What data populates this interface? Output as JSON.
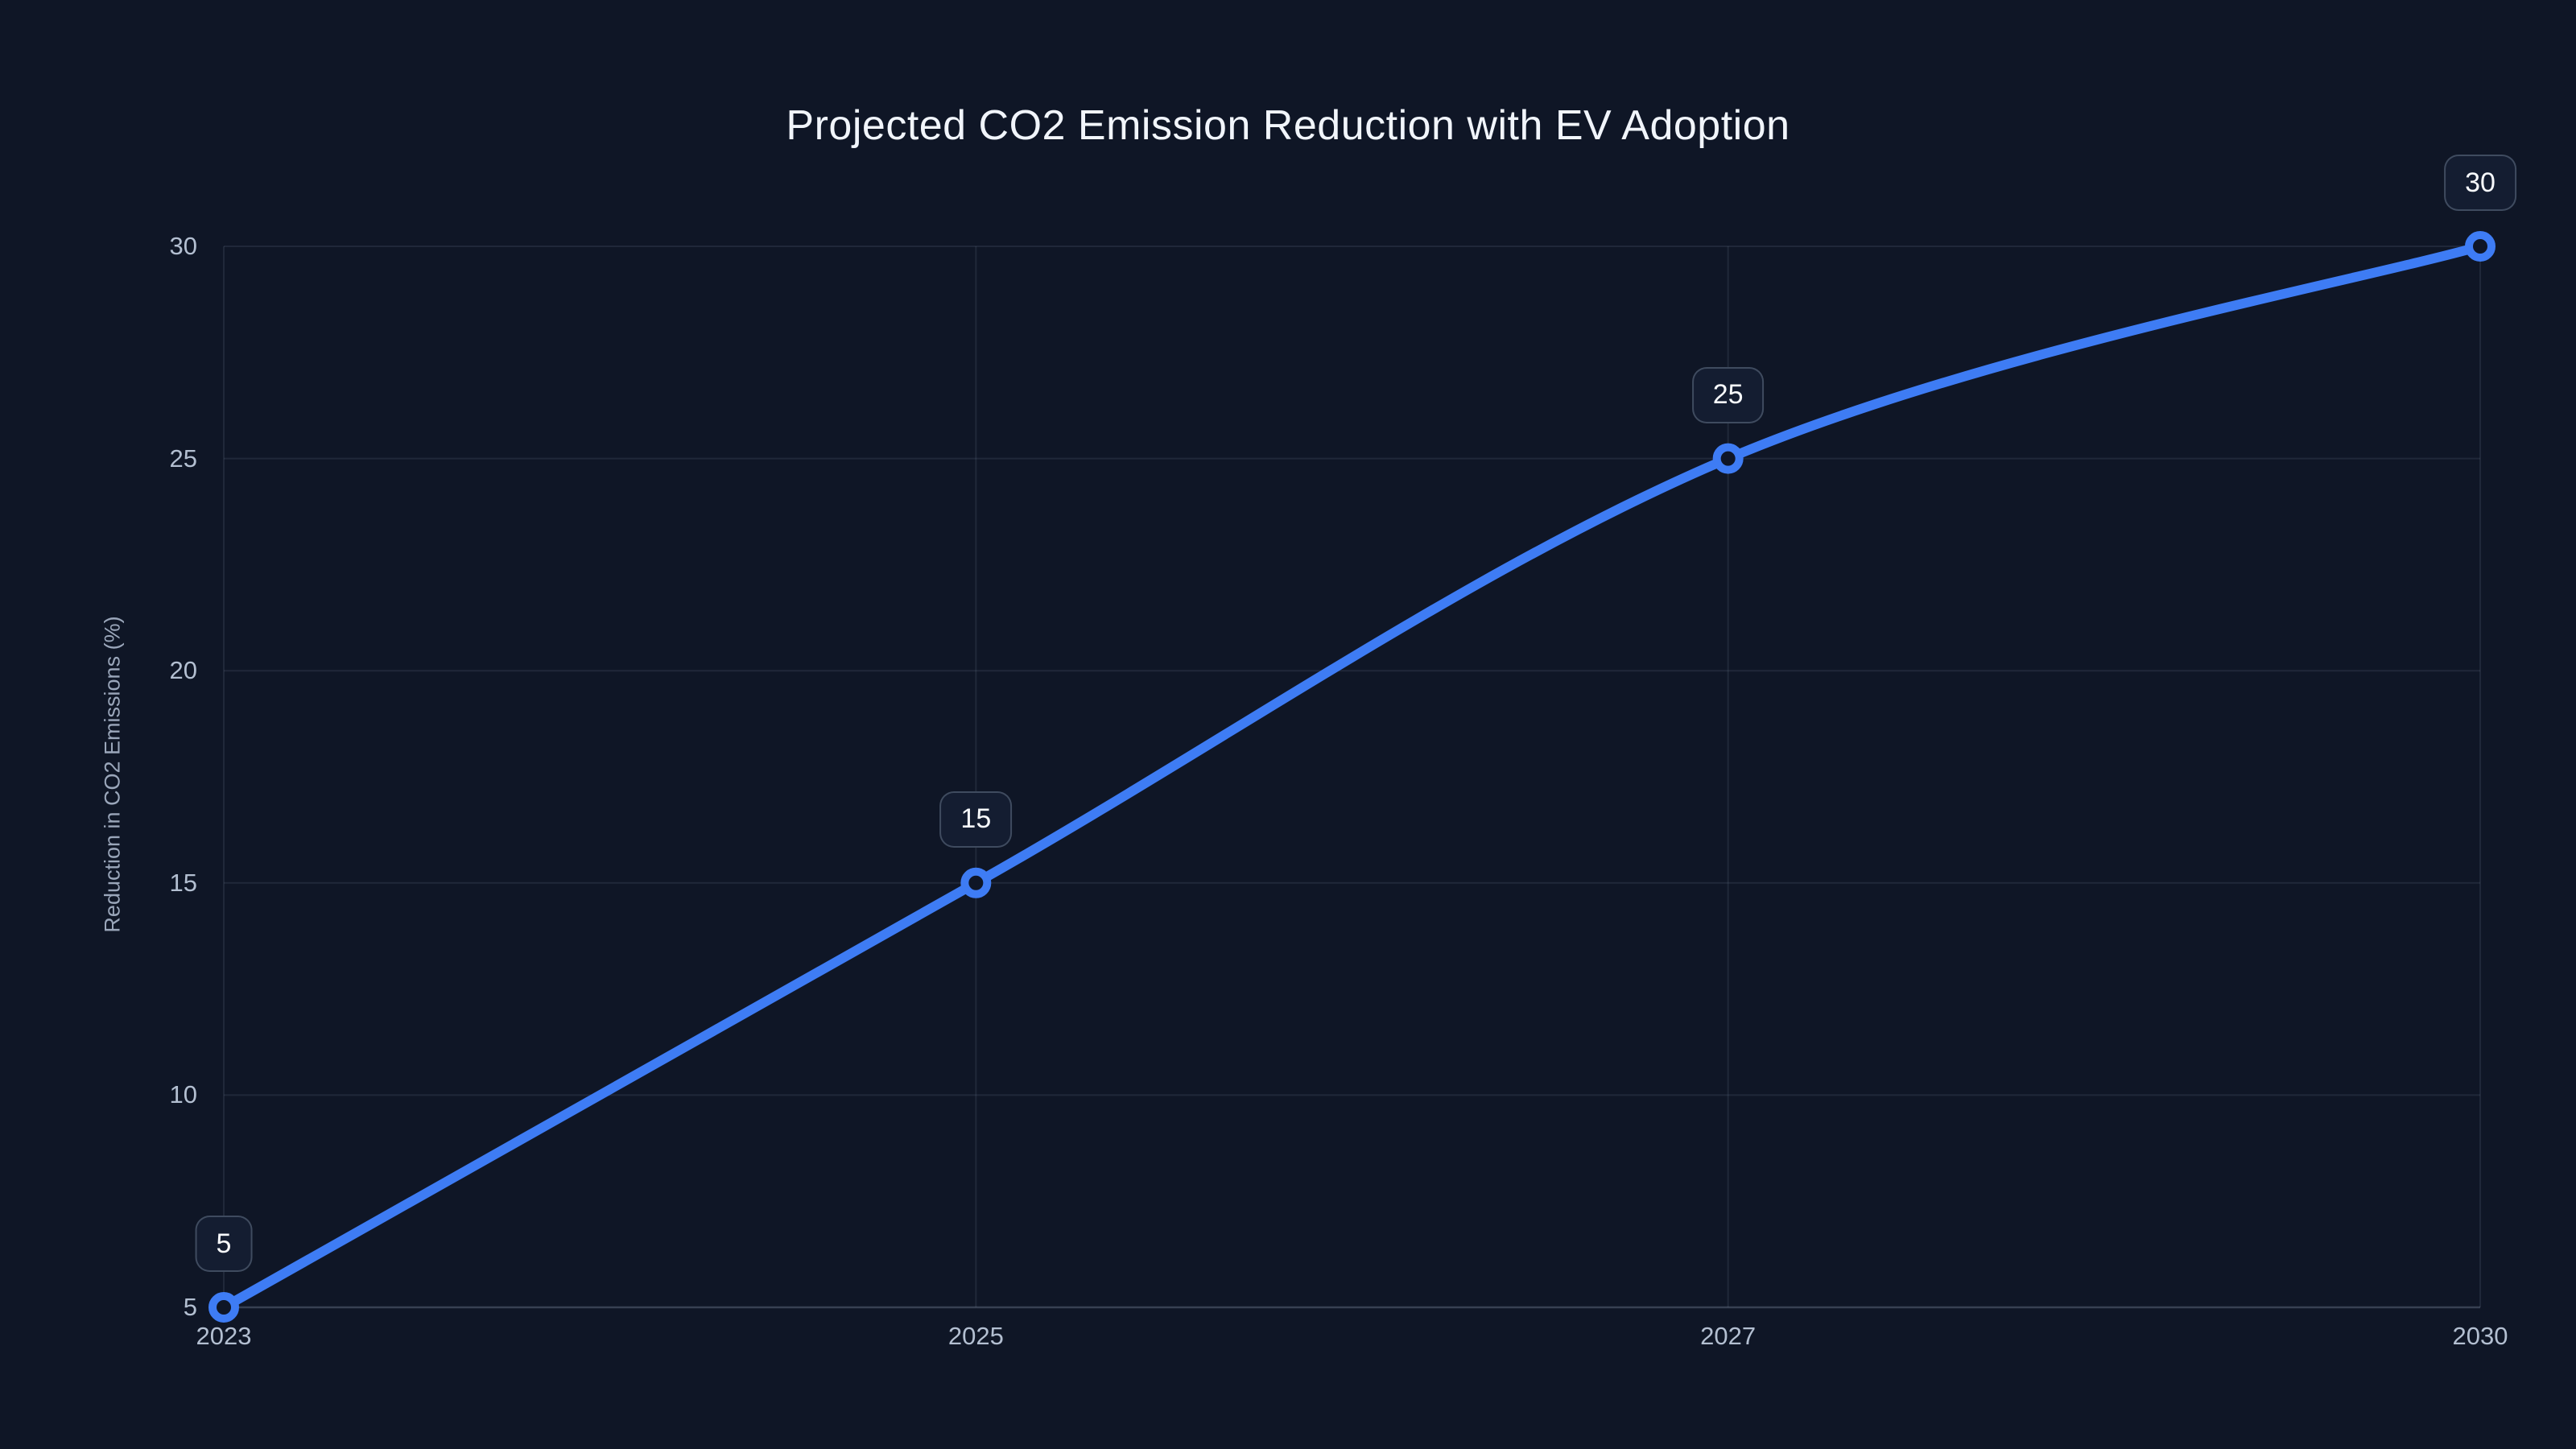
{
  "page": {
    "background_color": "#0f1626"
  },
  "chart_data": {
    "type": "line",
    "title": "Projected CO2 Emission Reduction with EV Adoption",
    "xlabel": "",
    "ylabel": "Reduction in CO2 Emissions (%)",
    "categories": [
      "2023",
      "2025",
      "2027",
      "2030"
    ],
    "series": [
      {
        "name": "Reduction in CO2 Emissions (%)",
        "values": [
          5,
          15,
          25,
          30
        ]
      }
    ],
    "point_labels": [
      "5",
      "15",
      "25",
      "30"
    ],
    "ylim": [
      5,
      30
    ],
    "yticks": [
      5,
      10,
      15,
      20,
      25,
      30
    ],
    "grid": true,
    "legend": "none",
    "line_smoothing": true,
    "colors": {
      "line": "#3e7cf4",
      "marker_ring": "#3e7cf4",
      "marker_fill": "#0f1626",
      "gridline": "rgba(148,163,184,0.13)",
      "axis_line": "rgba(148,163,184,0.30)",
      "tick_text": "#b3bfd1",
      "title_text": "#f1f5fb",
      "label_box_bg": "#141d31",
      "label_box_border": "rgba(148,163,184,0.34)"
    }
  }
}
